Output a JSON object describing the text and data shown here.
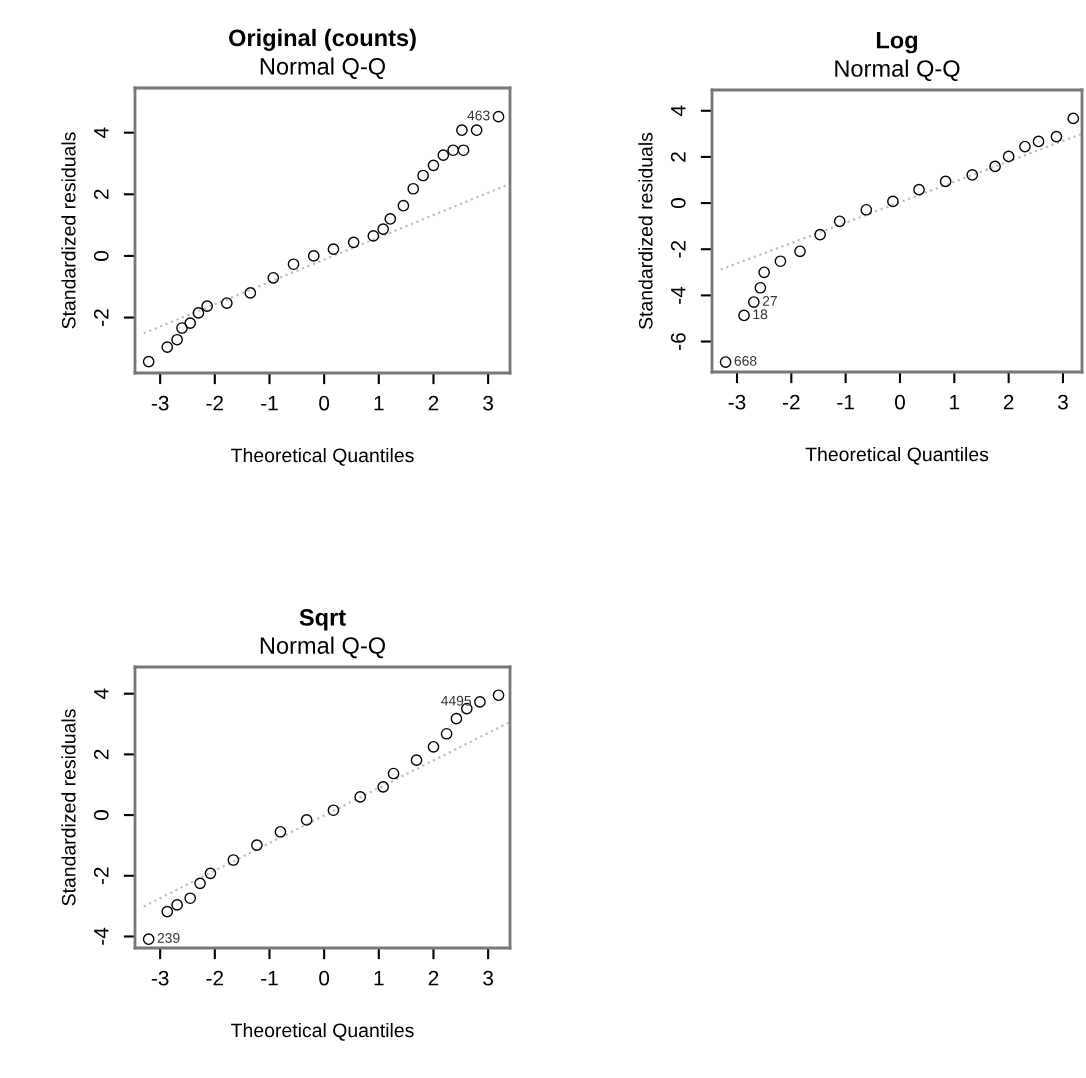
{
  "chart_data": [
    {
      "type": "scatter",
      "title": "Original (counts)",
      "subtitle": "Normal Q-Q",
      "xlabel": "Theoretical Quantiles",
      "ylabel": "Standardized residuals",
      "xlim": [
        -3.46,
        3.4
      ],
      "ylim": [
        -3.8,
        5.45
      ],
      "xticks": [
        -3,
        -2,
        -1,
        0,
        1,
        2,
        3
      ],
      "yticks": [
        -2,
        0,
        2,
        4
      ],
      "grid": false,
      "legend": false,
      "series": [
        {
          "color": "#000000",
          "marker": "circle",
          "x": [
            -3.21,
            -2.87,
            -2.69,
            -2.6,
            -2.45,
            -2.3,
            -2.14,
            -1.78,
            -1.35,
            -0.93,
            -0.56,
            -0.19,
            0.17,
            0.54,
            0.9,
            1.08,
            1.21,
            1.45,
            1.63,
            1.81,
            2.0,
            2.18,
            2.36,
            2.55,
            2.52,
            2.79,
            3.19
          ],
          "values": [
            -3.43,
            -2.96,
            -2.72,
            -2.34,
            -2.18,
            -1.85,
            -1.63,
            -1.53,
            -1.2,
            -0.71,
            -0.27,
            0.0,
            0.22,
            0.44,
            0.65,
            0.87,
            1.2,
            1.63,
            2.18,
            2.61,
            2.94,
            3.27,
            3.43,
            3.43,
            4.08,
            4.08,
            4.52
          ]
        },
        {
          "type": "line",
          "color": "#bebebe",
          "line_style": "dotted",
          "marker": "none",
          "x": [
            -3.3,
            3.4
          ],
          "values": [
            -2.51,
            2.34
          ]
        }
      ],
      "annotations": [
        {
          "text": "463",
          "x": 3.19,
          "y": 4.52
        }
      ]
    },
    {
      "type": "scatter",
      "title": "Log",
      "subtitle": "Normal Q-Q",
      "xlabel": "Theoretical Quantiles",
      "ylabel": "Standardized residuals",
      "xlim": [
        -3.46,
        3.35
      ],
      "ylim": [
        -7.32,
        4.9
      ],
      "xticks": [
        -3,
        -2,
        -1,
        0,
        1,
        2,
        3
      ],
      "yticks": [
        -6,
        -4,
        -2,
        0,
        2,
        4
      ],
      "grid": false,
      "legend": false,
      "series": [
        {
          "color": "#000000",
          "marker": "circle",
          "x": [
            -3.21,
            -2.87,
            -2.69,
            -2.57,
            -2.5,
            -2.2,
            -1.84,
            -1.47,
            -1.11,
            -0.62,
            -0.13,
            0.35,
            0.84,
            1.33,
            1.75,
            2.0,
            2.3,
            2.55,
            2.88,
            3.19
          ],
          "values": [
            -6.89,
            -4.87,
            -4.29,
            -3.67,
            -3.0,
            -2.52,
            -2.09,
            -1.37,
            -0.79,
            -0.29,
            0.07,
            0.58,
            0.94,
            1.22,
            1.59,
            2.02,
            2.45,
            2.67,
            2.88,
            3.67
          ]
        },
        {
          "type": "line",
          "color": "#bebebe",
          "line_style": "dotted",
          "marker": "none",
          "x": [
            -3.3,
            3.35
          ],
          "values": [
            -2.88,
            3.0
          ]
        }
      ],
      "annotations": [
        {
          "text": "27",
          "x": -2.69,
          "y": -4.29
        },
        {
          "text": "18",
          "x": -2.87,
          "y": -4.87
        },
        {
          "text": "668",
          "x": -3.21,
          "y": -6.89
        }
      ]
    },
    {
      "type": "scatter",
      "title": "Sqrt",
      "subtitle": "Normal Q-Q",
      "xlabel": "Theoretical Quantiles",
      "ylabel": "Standardized residuals",
      "xlim": [
        -3.46,
        3.4
      ],
      "ylim": [
        -4.38,
        4.88
      ],
      "xticks": [
        -3,
        -2,
        -1,
        0,
        1,
        2,
        3
      ],
      "yticks": [
        -4,
        -2,
        0,
        2,
        4
      ],
      "grid": false,
      "legend": false,
      "series": [
        {
          "color": "#000000",
          "marker": "circle",
          "x": [
            -3.21,
            -2.87,
            -2.69,
            -2.45,
            -2.27,
            -2.08,
            -1.66,
            -1.23,
            -0.8,
            -0.32,
            0.17,
            0.66,
            1.08,
            1.27,
            1.69,
            2.0,
            2.24,
            2.42,
            2.61,
            2.85,
            3.19
          ],
          "values": [
            -4.09,
            -3.18,
            -2.96,
            -2.74,
            -2.25,
            -1.92,
            -1.48,
            -0.99,
            -0.55,
            -0.16,
            0.16,
            0.6,
            0.93,
            1.37,
            1.81,
            2.25,
            2.68,
            3.18,
            3.51,
            3.73,
            3.95
          ]
        },
        {
          "type": "line",
          "color": "#bebebe",
          "line_style": "dotted",
          "marker": "none",
          "x": [
            -3.3,
            3.4
          ],
          "values": [
            -3.01,
            3.07
          ]
        }
      ],
      "annotations": [
        {
          "text": "239",
          "x": -3.21,
          "y": -4.09
        },
        {
          "text": "4495",
          "x": 2.85,
          "y": 3.73
        }
      ]
    }
  ]
}
